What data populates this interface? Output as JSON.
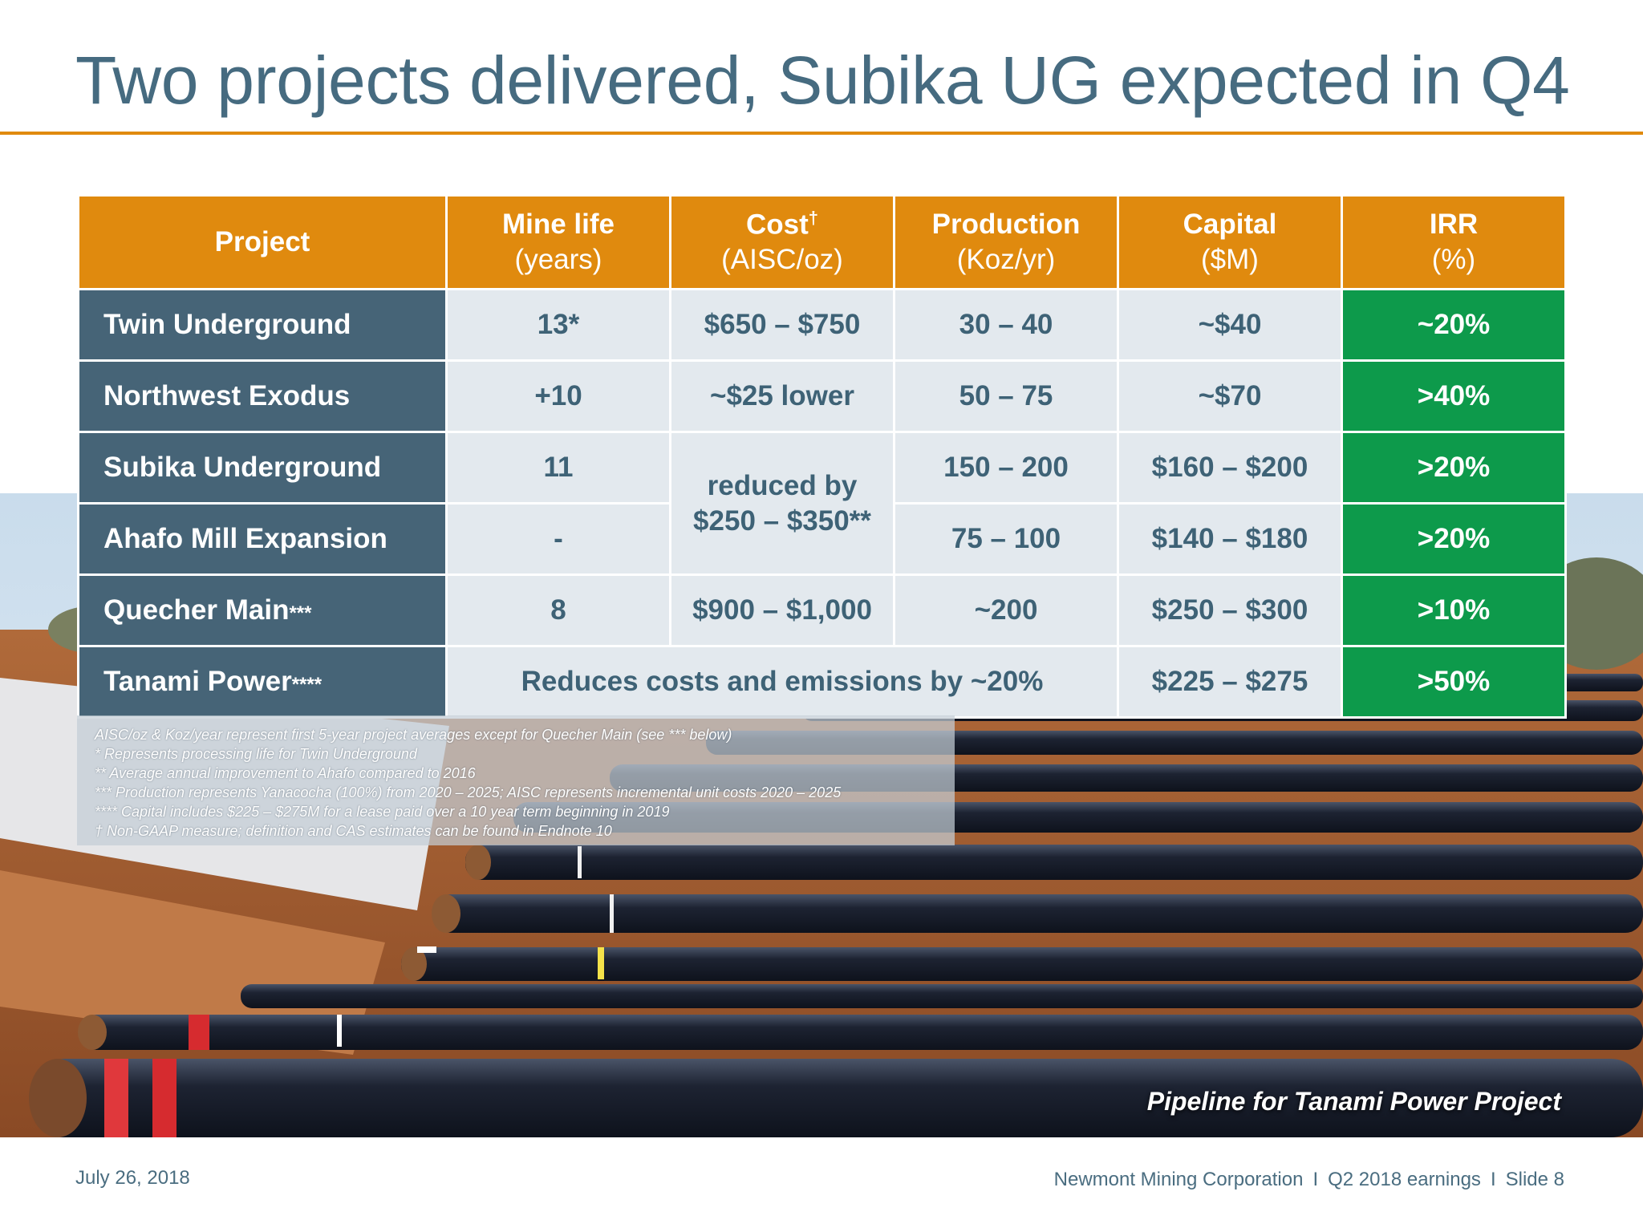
{
  "slide": {
    "title": "Two projects delivered, Subika UG expected in Q4"
  },
  "table": {
    "headers": [
      {
        "main": "Project",
        "unit": ""
      },
      {
        "main": "Mine life",
        "unit": "(years)"
      },
      {
        "main": "Cost",
        "sup": "†",
        "unit": "(AISC/oz)"
      },
      {
        "main": "Production",
        "unit": "(Koz/yr)"
      },
      {
        "main": "Capital",
        "unit": "($M)"
      },
      {
        "main": "IRR",
        "unit": "(%)"
      }
    ],
    "rows": [
      {
        "project": "Twin Underground",
        "stars": "",
        "mine_life": "13*",
        "cost": "$650 – $750",
        "production": "30 – 40",
        "capital": "~$40",
        "irr": "~20%"
      },
      {
        "project": "Northwest Exodus",
        "stars": "",
        "mine_life": "+10",
        "cost": "~$25 lower",
        "production": "50 – 75",
        "capital": "~$70",
        "irr": ">40%"
      },
      {
        "project": "Subika Underground",
        "stars": "",
        "mine_life": "11",
        "cost": "",
        "production": "150 – 200",
        "capital": "$160 – $200",
        "irr": ">20%"
      },
      {
        "project": "Ahafo Mill Expansion",
        "stars": "",
        "mine_life": "-",
        "cost": "",
        "production": "75 – 100",
        "capital": "$140 – $180",
        "irr": ">20%"
      },
      {
        "project": "Quecher Main",
        "stars": "***",
        "mine_life": "8",
        "cost": "$900 – $1,000",
        "production": "~200",
        "capital": "$250 – $300",
        "irr": ">10%"
      },
      {
        "project": "Tanami Power",
        "stars": "****",
        "mine_life": "",
        "cost": "",
        "production": "",
        "capital": "$225 – $275",
        "irr": ">50%"
      }
    ],
    "merged_cost_line1": "reduced by",
    "merged_cost_line2": "$250 – $350**",
    "tanami_note": "Reduces costs and emissions by ~20%"
  },
  "footnotes": [
    "AISC/oz & Koz/year represent first 5-year project averages except for Quecher Main (see *** below)",
    "* Represents processing life for Twin Underground",
    "** Average annual improvement to Ahafo compared to 2016",
    "*** Production represents Yanacocha (100%) from 2020 – 2025; AISC represents incremental unit costs 2020 – 2025",
    "**** Capital includes $225 – $275M for a lease paid over a 10 year term beginning in 2019",
    "† Non-GAAP measure; definition and CAS estimates can be found in Endnote 10"
  ],
  "photo": {
    "caption": "Pipeline for Tanami Power Project"
  },
  "footer": {
    "date": "July 26, 2018",
    "company": "Newmont Mining Corporation",
    "separator": "I",
    "event": "Q2 2018 earnings",
    "slide": "Slide 8"
  },
  "colors": {
    "title": "#466b80",
    "accent_orange": "#e08a0e",
    "project_cell": "#466477",
    "value_cell": "#e3e9ee",
    "irr_green": "#0d9a4b"
  }
}
